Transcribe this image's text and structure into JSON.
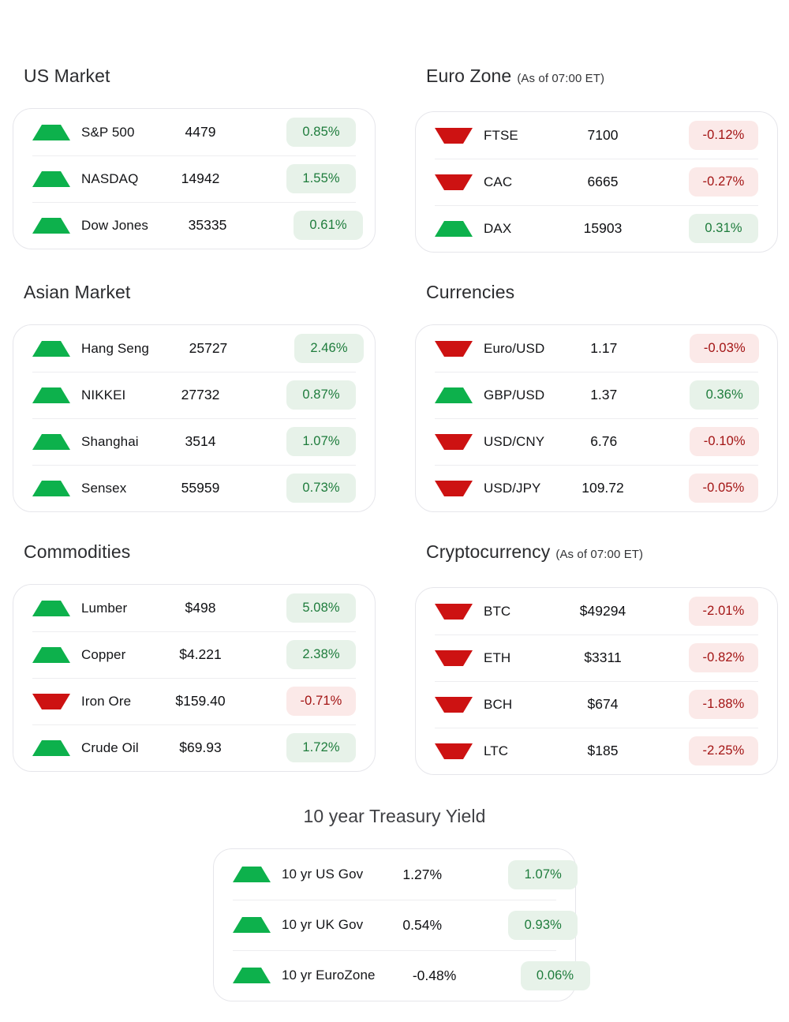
{
  "colors": {
    "up": "#0db14c",
    "down": "#cd1212",
    "badge_up_bg": "#e7f2e9",
    "badge_up_text": "#1e7c3c",
    "badge_down_bg": "#fbe9e8",
    "badge_down_text": "#a31414"
  },
  "sections": [
    {
      "id": "us-market",
      "title": "US Market",
      "rows": [
        {
          "direction": "up",
          "label": "S&P 500",
          "value": "4479",
          "change": "0.85%"
        },
        {
          "direction": "up",
          "label": "NASDAQ",
          "value": "14942",
          "change": "1.55%"
        },
        {
          "direction": "up",
          "label": "Dow Jones",
          "value": "35335",
          "change": "0.61%"
        }
      ]
    },
    {
      "id": "euro-zone",
      "title": "Euro Zone",
      "subtitle": "(As of 07:00 ET)",
      "rows": [
        {
          "direction": "down",
          "label": "FTSE",
          "value": "7100",
          "change": "-0.12%"
        },
        {
          "direction": "down",
          "label": "CAC",
          "value": "6665",
          "change": "-0.27%"
        },
        {
          "direction": "up",
          "label": "DAX",
          "value": "15903",
          "change": "0.31%"
        }
      ]
    },
    {
      "id": "asian-market",
      "title": "Asian Market",
      "rows": [
        {
          "direction": "up",
          "label": "Hang Seng",
          "value": "25727",
          "change": "2.46%"
        },
        {
          "direction": "up",
          "label": "NIKKEI",
          "value": "27732",
          "change": "0.87%"
        },
        {
          "direction": "up",
          "label": "Shanghai",
          "value": "3514",
          "change": "1.07%"
        },
        {
          "direction": "up",
          "label": "Sensex",
          "value": "55959",
          "change": "0.73%"
        }
      ]
    },
    {
      "id": "currencies",
      "title": "Currencies",
      "rows": [
        {
          "direction": "down",
          "label": "Euro/USD",
          "value": "1.17",
          "change": "-0.03%"
        },
        {
          "direction": "up",
          "label": "GBP/USD",
          "value": "1.37",
          "change": "0.36%"
        },
        {
          "direction": "down",
          "label": "USD/CNY",
          "value": "6.76",
          "change": "-0.10%"
        },
        {
          "direction": "down",
          "label": "USD/JPY",
          "value": "109.72",
          "change": "-0.05%"
        }
      ]
    },
    {
      "id": "commodities",
      "title": "Commodities",
      "rows": [
        {
          "direction": "up",
          "label": "Lumber",
          "value": "$498",
          "change": "5.08%"
        },
        {
          "direction": "up",
          "label": "Copper",
          "value": "$4.221",
          "change": "2.38%"
        },
        {
          "direction": "down",
          "label": "Iron Ore",
          "value": "$159.40",
          "change": "-0.71%"
        },
        {
          "direction": "up",
          "label": "Crude Oil",
          "value": "$69.93",
          "change": "1.72%"
        }
      ]
    },
    {
      "id": "cryptocurrency",
      "title": "Cryptocurrency",
      "subtitle": "(As of 07:00 ET)",
      "rows": [
        {
          "direction": "down",
          "label": "BTC",
          "value": "$49294",
          "change": "-2.01%"
        },
        {
          "direction": "down",
          "label": "ETH",
          "value": "$3311",
          "change": "-0.82%"
        },
        {
          "direction": "down",
          "label": "BCH",
          "value": "$674",
          "change": "-1.88%"
        },
        {
          "direction": "down",
          "label": "LTC",
          "value": "$185",
          "change": "-2.25%"
        }
      ]
    }
  ],
  "treasury": {
    "id": "treasury-yield",
    "title": "10 year Treasury Yield",
    "rows": [
      {
        "direction": "up",
        "label": "10 yr US Gov",
        "value": "1.27%",
        "change": "1.07%"
      },
      {
        "direction": "up",
        "label": "10 yr UK Gov",
        "value": "0.54%",
        "change": "0.93%"
      },
      {
        "direction": "up",
        "label": "10 yr EuroZone",
        "value": "-0.48%",
        "change": "0.06%"
      }
    ]
  }
}
